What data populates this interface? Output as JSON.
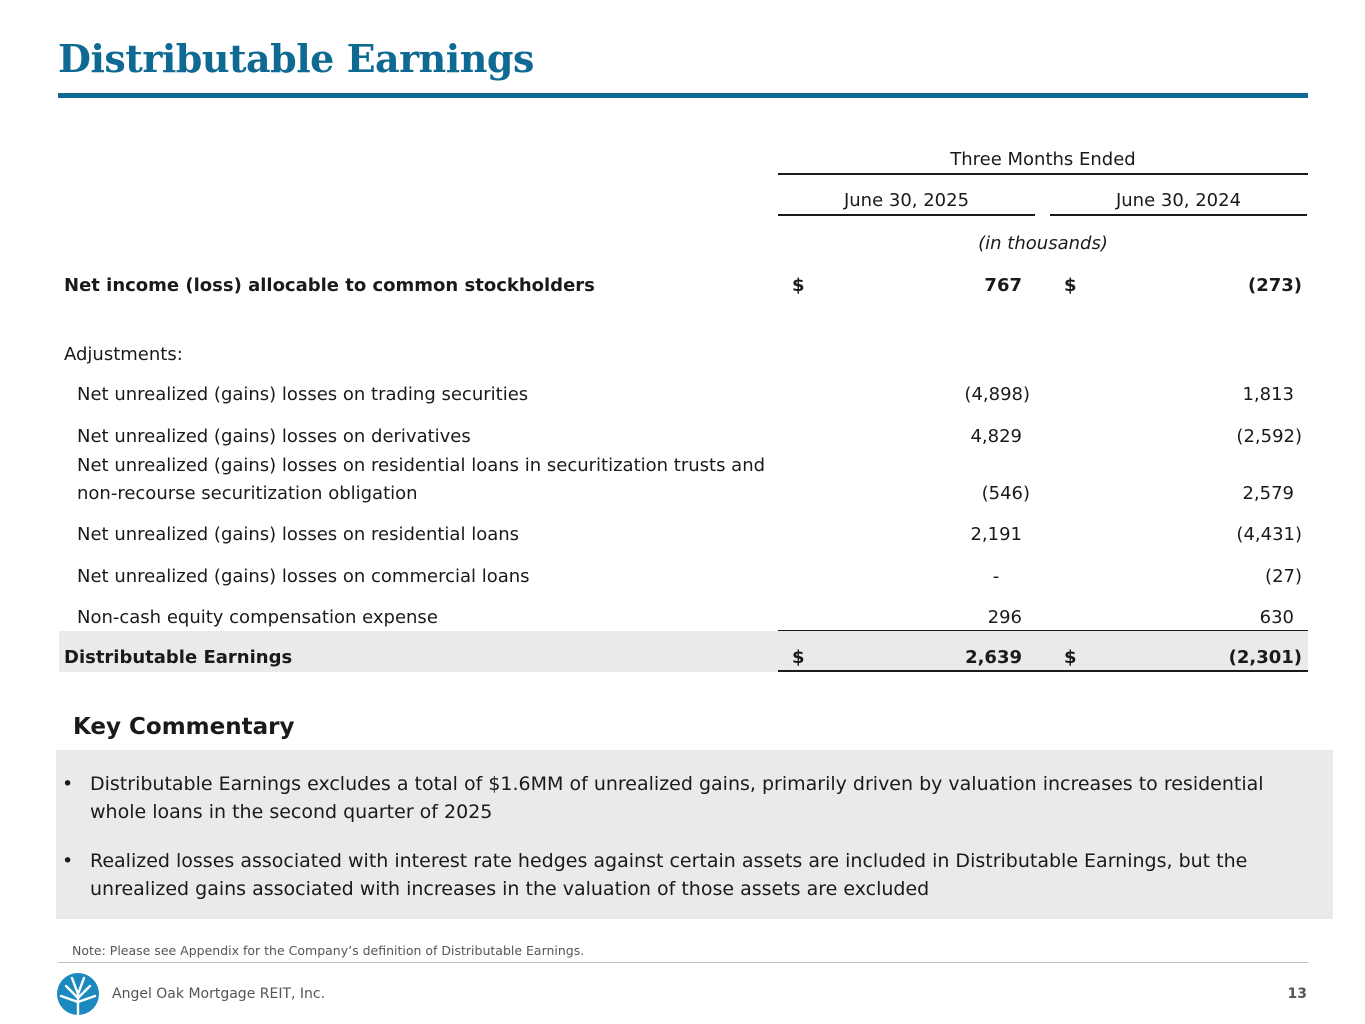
{
  "title": "Distributable Earnings",
  "table": {
    "period_header": "Three Months Ended",
    "col1_header": "June 30, 2025",
    "col2_header": "June 30, 2024",
    "units": "(in thousands)",
    "currency_symbol": "$",
    "net_income": {
      "label": "Net income (loss) allocable to common stockholders",
      "v1": "767",
      "v2": "(273)"
    },
    "adjustments_label": "Adjustments:",
    "rows": [
      {
        "label": "Net unrealized (gains) losses on trading securities",
        "v1": "(4,898)",
        "v2": "1,813"
      },
      {
        "label": "Net unrealized (gains) losses on derivatives",
        "v1": "4,829",
        "v2": "(2,592)"
      },
      {
        "label_line1": "Net unrealized (gains) losses on residential loans in securitization trusts and",
        "label_line2": "non-recourse securitization obligation",
        "v1": "(546)",
        "v2": "2,579"
      },
      {
        "label": "Net unrealized (gains) losses on residential loans",
        "v1": "2,191",
        "v2": "(4,431)"
      },
      {
        "label": "Net unrealized (gains) losses on commercial loans",
        "v1": "-",
        "v2": "(27)"
      },
      {
        "label": "Non-cash equity compensation expense",
        "v1": "296",
        "v2": "630"
      }
    ],
    "total": {
      "label": "Distributable Earnings",
      "v1": "2,639",
      "v2": "(2,301)"
    }
  },
  "commentary": {
    "heading": "Key Commentary",
    "bullet_symbol": "•",
    "bullets": [
      "Distributable Earnings excludes a total of $1.6MM of unrealized gains, primarily driven by valuation increases to residential whole loans in the second quarter of 2025",
      "Realized losses associated with interest rate hedges against certain assets are included in Distributable Earnings, but the unrealized gains associated with increases in the valuation of those assets are excluded"
    ]
  },
  "footer": {
    "note": "Note: Please see Appendix for the Company’s definition of Distributable Earnings.",
    "company": "Angel Oak Mortgage REIT, Inc.",
    "page_number": "13",
    "logo_icon": "angel-oak-tree-logo",
    "accent_color": "#0e6a93"
  }
}
